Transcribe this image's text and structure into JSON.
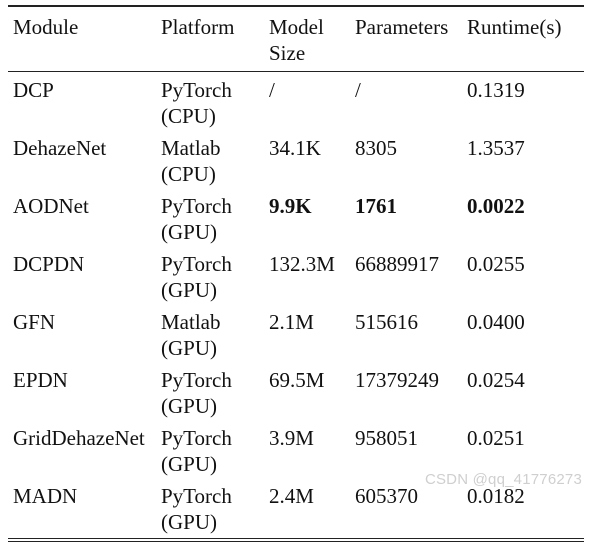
{
  "table": {
    "headers": [
      "Module",
      "Platform",
      "Model Size",
      "Parameters",
      "Runtime(s)"
    ],
    "rows": [
      {
        "module": "DCP",
        "platform": "PyTorch (CPU)",
        "size": "/",
        "params": "/",
        "runtime": "0.1319",
        "bold": false
      },
      {
        "module": "DehazeNet",
        "platform": "Matlab (CPU)",
        "size": "34.1K",
        "params": "8305",
        "runtime": "1.3537",
        "bold": false
      },
      {
        "module": "AODNet",
        "platform": "PyTorch (GPU)",
        "size": "9.9K",
        "params": "1761",
        "runtime": "0.0022",
        "bold": true
      },
      {
        "module": "DCPDN",
        "platform": "PyTorch (GPU)",
        "size": "132.3M",
        "params": "66889917",
        "runtime": "0.0255",
        "bold": false
      },
      {
        "module": "GFN",
        "platform": "Matlab (GPU)",
        "size": "2.1M",
        "params": "515616",
        "runtime": "0.0400",
        "bold": false
      },
      {
        "module": "EPDN",
        "platform": "PyTorch (GPU)",
        "size": "69.5M",
        "params": "17379249",
        "runtime": "0.0254",
        "bold": false
      },
      {
        "module": "GridDehazeNet",
        "platform": "PyTorch (GPU)",
        "size": "3.9M",
        "params": "958051",
        "runtime": "0.0251",
        "bold": false
      },
      {
        "module": "MADN",
        "platform": "PyTorch (GPU)",
        "size": "2.4M",
        "params": "605370",
        "runtime": "0.0182",
        "bold": false
      }
    ]
  },
  "watermark": "CSDN @qq_41776273"
}
